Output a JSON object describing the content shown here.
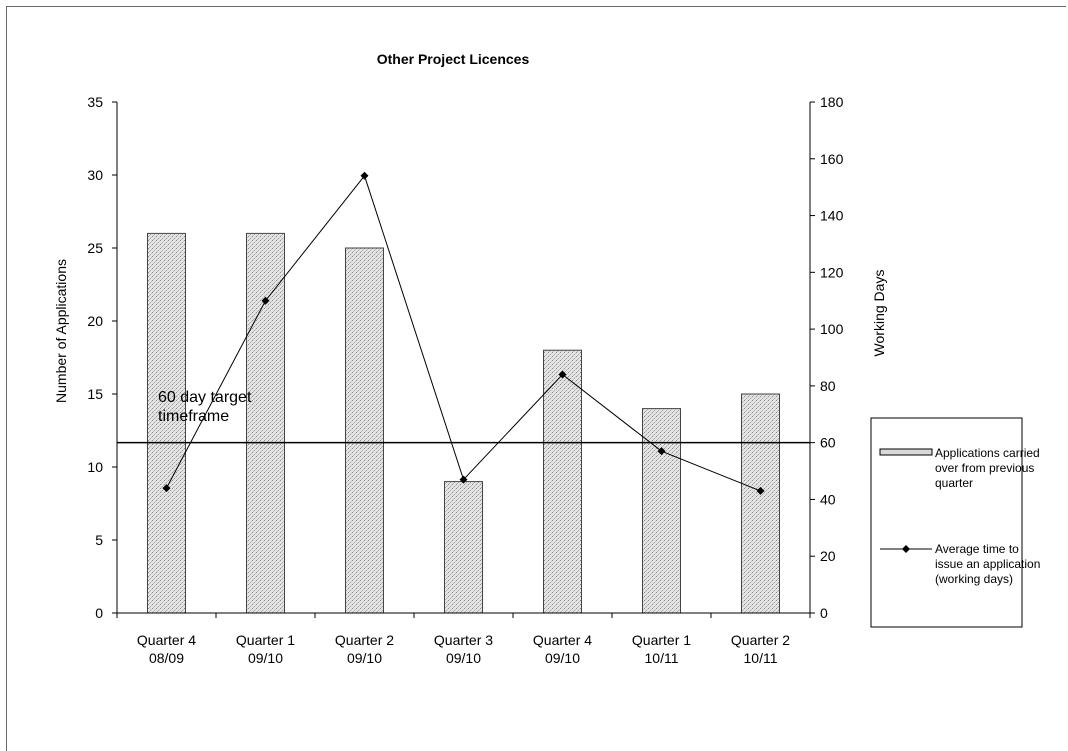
{
  "chart_data": {
    "type": "bar",
    "title": "Other Project Licences",
    "categories": [
      [
        "Quarter 4",
        "08/09"
      ],
      [
        "Quarter 1",
        "09/10"
      ],
      [
        "Quarter 2",
        "09/10"
      ],
      [
        "Quarter 3",
        "09/10"
      ],
      [
        "Quarter 4",
        "09/10"
      ],
      [
        "Quarter 1",
        "10/11"
      ],
      [
        "Quarter 2",
        "10/11"
      ]
    ],
    "series": [
      {
        "name": "Applications carried over from previous quarter",
        "legend_lines": [
          "Applications carried",
          "over from previous",
          "quarter"
        ],
        "type": "bar",
        "axis": "left",
        "color": "#d9d9d9",
        "values": [
          26,
          26,
          25,
          9,
          18,
          14,
          15
        ]
      },
      {
        "name": "Average time to issue an application (working days)",
        "legend_lines": [
          "Average time to",
          "issue an application",
          "(working days)"
        ],
        "type": "line",
        "axis": "right",
        "color": "#000000",
        "values": [
          44,
          110,
          154,
          47,
          84,
          57,
          43
        ]
      }
    ],
    "ylabel": "Number of Applications",
    "ylabel_right": "Working Days",
    "ylim": [
      0,
      35
    ],
    "ylim_right": [
      0,
      180
    ],
    "yticks": [
      0,
      5,
      10,
      15,
      20,
      25,
      30,
      35
    ],
    "yticks_right": [
      0,
      20,
      40,
      60,
      80,
      100,
      120,
      140,
      160,
      180
    ],
    "target_line": {
      "value": 60,
      "axis": "right",
      "label_lines": [
        "60 day target",
        "timeframe"
      ]
    },
    "grid": false,
    "legend_position": "right"
  }
}
